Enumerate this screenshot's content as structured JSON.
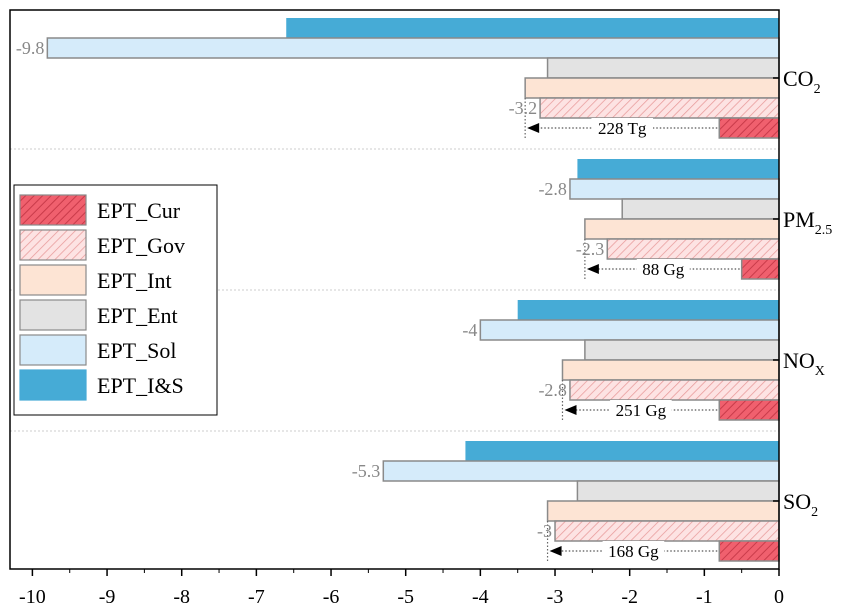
{
  "chart_data": {
    "type": "bar",
    "orientation": "horizontal",
    "title": "",
    "xlabel": "",
    "ylabel": "",
    "xlim": [
      -10.3,
      0
    ],
    "x_ticks": [
      -10,
      -9,
      -8,
      -7,
      -6,
      -5,
      -4,
      -3,
      -2,
      -1,
      0
    ],
    "x_tick_labels": [
      "-10",
      "-9",
      "-8",
      "-7",
      "-6",
      "-5",
      "-4",
      "-3",
      "-2",
      "-1",
      "0"
    ],
    "grid": false,
    "legend_position": "left",
    "categories": [
      {
        "id": "co2",
        "main": "CO",
        "sub": "2"
      },
      {
        "id": "pm25",
        "main": "PM",
        "sub": "2.5"
      },
      {
        "id": "nox",
        "main": "NO",
        "sub": "X"
      },
      {
        "id": "so2",
        "main": "SO",
        "sub": "2"
      }
    ],
    "series": [
      {
        "name": "EPT_Cur",
        "color": "#f0606e",
        "hatch": true,
        "values": [
          -0.8,
          -0.5,
          -0.8,
          -0.8
        ]
      },
      {
        "name": "EPT_Gov",
        "color": "#fcd3d3",
        "hatch": true,
        "values": [
          -3.2,
          -2.3,
          -2.8,
          -3.0
        ]
      },
      {
        "name": "EPT_Int",
        "color": "#fde4d4",
        "hatch": false,
        "values": [
          -3.4,
          -2.6,
          -2.9,
          -3.1
        ]
      },
      {
        "name": "EPT_Ent",
        "color": "#e3e3e3",
        "hatch": false,
        "values": [
          -3.1,
          -2.1,
          -2.6,
          -2.7
        ]
      },
      {
        "name": "EPT_Sol",
        "color": "#d5ebfa",
        "hatch": false,
        "values": [
          -9.8,
          -2.8,
          -4.0,
          -5.3
        ]
      },
      {
        "name": "EPT_I&S",
        "color": "#46abd6",
        "hatch": false,
        "values": [
          -6.6,
          -2.7,
          -3.5,
          -4.2
        ]
      }
    ],
    "data_labels": [
      {
        "category": 0,
        "series": "EPT_Sol",
        "text": "-9.8"
      },
      {
        "category": 0,
        "series": "EPT_Gov",
        "text": "-3.2"
      },
      {
        "category": 1,
        "series": "EPT_Sol",
        "text": "-2.8"
      },
      {
        "category": 1,
        "series": "EPT_Gov",
        "text": "-2.3"
      },
      {
        "category": 2,
        "series": "EPT_Sol",
        "text": "-4"
      },
      {
        "category": 2,
        "series": "EPT_Gov",
        "text": "-2.8"
      },
      {
        "category": 3,
        "series": "EPT_Sol",
        "text": "-5.3"
      },
      {
        "category": 3,
        "series": "EPT_Gov",
        "text": "-3"
      }
    ],
    "annotations": [
      {
        "category": 0,
        "text": "228 Tg",
        "from": -0.8,
        "to": -3.4
      },
      {
        "category": 1,
        "text": "88 Gg",
        "from": -0.5,
        "to": -2.6
      },
      {
        "category": 2,
        "text": "251 Gg",
        "from": -0.8,
        "to": -2.9
      },
      {
        "category": 3,
        "text": "168 Gg",
        "from": -0.8,
        "to": -3.1
      }
    ]
  }
}
